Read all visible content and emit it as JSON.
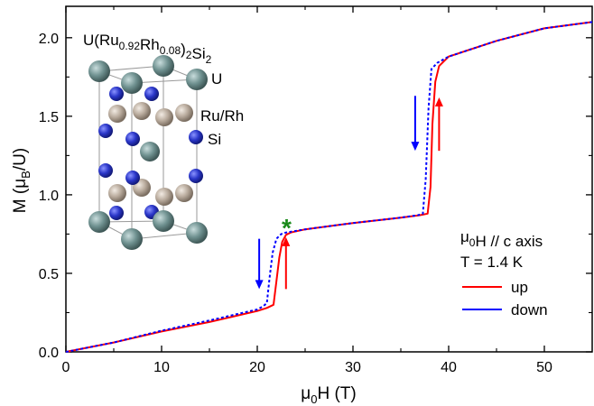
{
  "chart_data": {
    "type": "line",
    "xlabel": {
      "main": "μ",
      "sub": "0",
      "rest": "H (T)"
    },
    "ylabel": {
      "pre": "M (μ",
      "sub": "B",
      "post": "/U)"
    },
    "xlim": [
      0,
      55
    ],
    "ylim": [
      0,
      2.2
    ],
    "x_ticks": [
      0,
      10,
      20,
      30,
      40,
      50
    ],
    "x_tick_labels": [
      "0",
      "10",
      "20",
      "30",
      "40",
      "50"
    ],
    "y_ticks": [
      0,
      0.5,
      1.0,
      1.5,
      2.0
    ],
    "y_tick_labels": [
      "0.0",
      "0.5",
      "1.0",
      "1.5",
      "2.0"
    ],
    "grid": false,
    "legend_position": "right",
    "conditions": [
      {
        "parts": [
          {
            "t": "μ",
            "s": ""
          },
          {
            "t": "0",
            "s": "sub"
          },
          {
            "t": "H // c axis",
            "s": ""
          }
        ]
      },
      {
        "parts": [
          {
            "t": "T = 1.4 K",
            "s": ""
          }
        ]
      }
    ],
    "compound_formula": {
      "parts": [
        {
          "t": "U(Ru",
          "s": ""
        },
        {
          "t": "0.92",
          "s": "sub"
        },
        {
          "t": "Rh",
          "s": ""
        },
        {
          "t": "0.08",
          "s": "sub"
        },
        {
          "t": ")",
          "s": ""
        },
        {
          "t": "2",
          "s": "sub"
        },
        {
          "t": "Si",
          "s": ""
        },
        {
          "t": "2",
          "s": "sub"
        }
      ]
    },
    "atom_labels": [
      "U",
      "Ru/Rh",
      "Si"
    ],
    "star_annotation": "*",
    "series": [
      {
        "name": "up",
        "color": "#ff0000",
        "dash": "solid",
        "x": [
          0,
          5,
          10,
          15,
          20,
          21,
          21.7,
          22,
          22.3,
          22.6,
          23,
          23.5,
          25,
          30,
          35,
          37,
          37.8,
          38.1,
          38.3,
          38.6,
          39,
          40,
          45,
          50,
          55
        ],
        "y": [
          0,
          0.06,
          0.13,
          0.19,
          0.26,
          0.28,
          0.3,
          0.45,
          0.6,
          0.7,
          0.745,
          0.76,
          0.78,
          0.82,
          0.855,
          0.87,
          0.88,
          1.05,
          1.45,
          1.72,
          1.82,
          1.88,
          1.98,
          2.06,
          2.1
        ]
      },
      {
        "name": "down",
        "color": "#0000ff",
        "dash": "dashed",
        "x": [
          0,
          5,
          10,
          15,
          20,
          20.6,
          21.0,
          21.3,
          21.6,
          22,
          22.5,
          23,
          25,
          30,
          35,
          36.8,
          37.3,
          37.6,
          37.9,
          38.2,
          38.8,
          40,
          45,
          50,
          55
        ],
        "y": [
          0,
          0.06,
          0.135,
          0.2,
          0.27,
          0.29,
          0.31,
          0.48,
          0.63,
          0.72,
          0.75,
          0.76,
          0.78,
          0.82,
          0.855,
          0.87,
          0.88,
          1.1,
          1.55,
          1.8,
          1.84,
          1.88,
          1.98,
          2.06,
          2.1
        ]
      }
    ],
    "arrows": [
      {
        "dir": "down",
        "color": "#0000ff",
        "x": 20.2,
        "y_from": 0.72,
        "y_to": 0.4
      },
      {
        "dir": "up",
        "color": "#ff0000",
        "x": 23.0,
        "y_from": 0.4,
        "y_to": 0.73
      },
      {
        "dir": "down",
        "color": "#0000ff",
        "x": 36.5,
        "y_from": 1.63,
        "y_to": 1.28
      },
      {
        "dir": "up",
        "color": "#ff0000",
        "x": 39.0,
        "y_from": 1.28,
        "y_to": 1.62
      }
    ]
  }
}
